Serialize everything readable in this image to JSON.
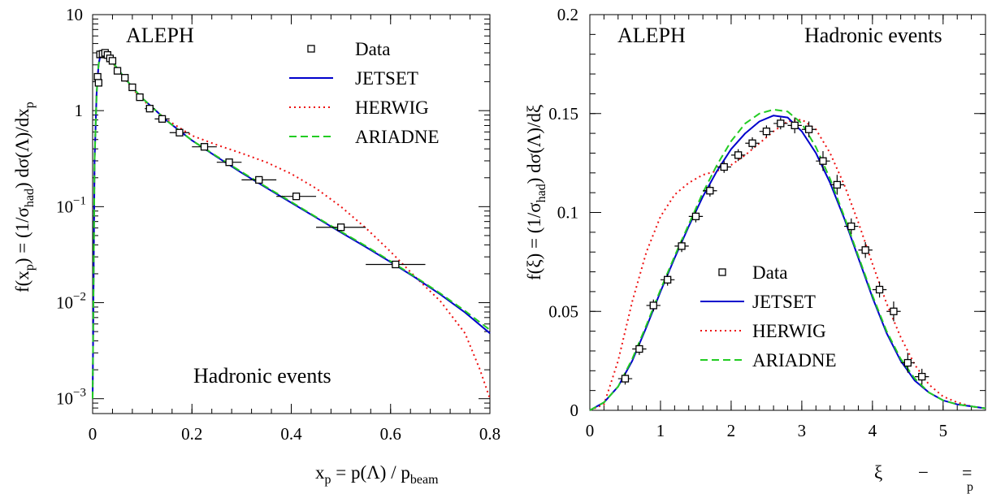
{
  "chart_data": [
    {
      "type": "scatter",
      "experiment": "ALEPH",
      "annotation": "Hadronic events",
      "xlabel": {
        "main": "x",
        "sub": "p",
        "eq": " = p(Λ) / p",
        "sub2": "beam"
      },
      "ylabel": "f(x_p) = (1/σ_had) dσ(Λ)/dx_p",
      "xlim": [
        0,
        0.8
      ],
      "ylim": [
        0.0007,
        10
      ],
      "yscale": "log",
      "xticks": [
        0,
        0.2,
        0.4,
        0.6,
        0.8
      ],
      "xtick_labels": [
        "0",
        "0.2",
        "0.4",
        "0.6",
        "0.8"
      ],
      "yticks": [
        {
          "v": 10,
          "base": "10",
          "exp": ""
        },
        {
          "v": 1,
          "base": "1",
          "exp": ""
        },
        {
          "v": 0.1,
          "base": "10",
          "exp": "−1"
        },
        {
          "v": 0.01,
          "base": "10",
          "exp": "−2"
        },
        {
          "v": 0.001,
          "base": "10",
          "exp": "−3"
        }
      ],
      "legend": [
        {
          "label": "Data",
          "style": "marker"
        },
        {
          "label": "JETSET",
          "style": "solid",
          "color": "#0000cc"
        },
        {
          "label": "HERWIG",
          "style": "dotted",
          "color": "#ee1111"
        },
        {
          "label": "ARIADNE",
          "style": "dashed",
          "color": "#22cc22"
        }
      ],
      "data": [
        {
          "x": 0.01,
          "y": 2.25,
          "xerr": 0.0025
        },
        {
          "x": 0.012,
          "y": 1.95,
          "xerr": 0.0025
        },
        {
          "x": 0.015,
          "y": 3.85,
          "xerr": 0.0025
        },
        {
          "x": 0.02,
          "y": 3.9,
          "xerr": 0.0025
        },
        {
          "x": 0.025,
          "y": 4.0,
          "xerr": 0.0025
        },
        {
          "x": 0.03,
          "y": 3.8,
          "xerr": 0.0025
        },
        {
          "x": 0.035,
          "y": 3.5,
          "xerr": 0.0025
        },
        {
          "x": 0.04,
          "y": 3.3,
          "xerr": 0.0025
        },
        {
          "x": 0.05,
          "y": 2.6,
          "xerr": 0.005
        },
        {
          "x": 0.065,
          "y": 2.2,
          "xerr": 0.0075
        },
        {
          "x": 0.08,
          "y": 1.75,
          "xerr": 0.0075
        },
        {
          "x": 0.095,
          "y": 1.38,
          "xerr": 0.0075
        },
        {
          "x": 0.115,
          "y": 1.05,
          "xerr": 0.01
        },
        {
          "x": 0.14,
          "y": 0.82,
          "xerr": 0.015
        },
        {
          "x": 0.175,
          "y": 0.59,
          "xerr": 0.02
        },
        {
          "x": 0.225,
          "y": 0.42,
          "xerr": 0.025
        },
        {
          "x": 0.275,
          "y": 0.29,
          "xerr": 0.025
        },
        {
          "x": 0.335,
          "y": 0.19,
          "xerr": 0.035
        },
        {
          "x": 0.41,
          "y": 0.128,
          "xerr": 0.04
        },
        {
          "x": 0.5,
          "y": 0.061,
          "xerr": 0.05
        },
        {
          "x": 0.61,
          "y": 0.025,
          "xerr": 0.06
        }
      ],
      "series": [
        {
          "name": "JETSET",
          "color": "#0000cc",
          "x": [
            0.0,
            0.004,
            0.008,
            0.012,
            0.016,
            0.02,
            0.025,
            0.03,
            0.04,
            0.05,
            0.06,
            0.08,
            0.1,
            0.15,
            0.2,
            0.25,
            0.3,
            0.35,
            0.4,
            0.45,
            0.5,
            0.55,
            0.6,
            0.65,
            0.7,
            0.75,
            0.8
          ],
          "y": [
            0.001,
            0.3,
            1.5,
            3.0,
            3.9,
            4.1,
            4.0,
            3.7,
            3.2,
            2.75,
            2.35,
            1.75,
            1.35,
            0.78,
            0.49,
            0.33,
            0.225,
            0.157,
            0.11,
            0.077,
            0.054,
            0.038,
            0.0265,
            0.0182,
            0.0122,
            0.0079,
            0.0048
          ]
        },
        {
          "name": "HERWIG",
          "color": "#ee1111",
          "x": [
            0.0,
            0.004,
            0.008,
            0.012,
            0.016,
            0.02,
            0.025,
            0.03,
            0.04,
            0.05,
            0.06,
            0.08,
            0.1,
            0.15,
            0.2,
            0.25,
            0.3,
            0.35,
            0.4,
            0.45,
            0.5,
            0.55,
            0.6,
            0.65,
            0.7,
            0.75,
            0.78,
            0.8
          ],
          "y": [
            0.001,
            0.3,
            1.5,
            3.0,
            3.9,
            4.1,
            4.0,
            3.7,
            3.15,
            2.7,
            2.3,
            1.7,
            1.3,
            0.8,
            0.55,
            0.44,
            0.36,
            0.29,
            0.22,
            0.155,
            0.1,
            0.06,
            0.034,
            0.0185,
            0.0104,
            0.0048,
            0.002,
            0.001
          ]
        },
        {
          "name": "ARIADNE",
          "color": "#22cc22",
          "x": [
            0.0,
            0.004,
            0.008,
            0.012,
            0.016,
            0.02,
            0.025,
            0.03,
            0.04,
            0.05,
            0.06,
            0.08,
            0.1,
            0.15,
            0.2,
            0.25,
            0.3,
            0.35,
            0.4,
            0.45,
            0.5,
            0.55,
            0.6,
            0.65,
            0.7,
            0.75,
            0.8
          ],
          "y": [
            0.001,
            0.3,
            1.5,
            3.0,
            3.9,
            4.1,
            4.0,
            3.7,
            3.2,
            2.75,
            2.35,
            1.75,
            1.35,
            0.78,
            0.49,
            0.335,
            0.23,
            0.16,
            0.112,
            0.078,
            0.055,
            0.039,
            0.027,
            0.0185,
            0.0125,
            0.0082,
            0.0052
          ]
        }
      ]
    },
    {
      "type": "scatter",
      "experiment": "ALEPH",
      "annotation": "Hadronic events",
      "xlabel": {
        "main": "ξ",
        "dash": "−",
        "bar": "="
      },
      "ylabel": "f(ξ) = (1/σ_had) dσ(Λ)/dξ",
      "xlim": [
        0,
        5.6
      ],
      "ylim": [
        0,
        0.2
      ],
      "yscale": "linear",
      "xticks": [
        0,
        1,
        2,
        3,
        4,
        5
      ],
      "xtick_labels": [
        "0",
        "1",
        "2",
        "3",
        "4",
        "5"
      ],
      "yticks": [
        {
          "v": 0,
          "label": "0"
        },
        {
          "v": 0.05,
          "label": "0.05"
        },
        {
          "v": 0.1,
          "label": "0.1"
        },
        {
          "v": 0.15,
          "label": "0.15"
        },
        {
          "v": 0.2,
          "label": "0.2"
        }
      ],
      "legend": [
        {
          "label": "Data",
          "style": "marker"
        },
        {
          "label": "JETSET",
          "style": "solid",
          "color": "#0000cc"
        },
        {
          "label": "HERWIG",
          "style": "dotted",
          "color": "#ee1111"
        },
        {
          "label": "ARIADNE",
          "style": "dashed",
          "color": "#22cc22"
        }
      ],
      "data": [
        {
          "x": 0.5,
          "y": 0.016,
          "xerr": 0.1,
          "yerr": 0.003
        },
        {
          "x": 0.7,
          "y": 0.031,
          "xerr": 0.1,
          "yerr": 0.003
        },
        {
          "x": 0.9,
          "y": 0.053,
          "xerr": 0.1,
          "yerr": 0.003
        },
        {
          "x": 1.1,
          "y": 0.066,
          "xerr": 0.1,
          "yerr": 0.003
        },
        {
          "x": 1.3,
          "y": 0.083,
          "xerr": 0.1,
          "yerr": 0.003
        },
        {
          "x": 1.5,
          "y": 0.098,
          "xerr": 0.1,
          "yerr": 0.003
        },
        {
          "x": 1.7,
          "y": 0.111,
          "xerr": 0.1,
          "yerr": 0.003
        },
        {
          "x": 1.9,
          "y": 0.123,
          "xerr": 0.1,
          "yerr": 0.003
        },
        {
          "x": 2.1,
          "y": 0.129,
          "xerr": 0.1,
          "yerr": 0.003
        },
        {
          "x": 2.3,
          "y": 0.135,
          "xerr": 0.1,
          "yerr": 0.003
        },
        {
          "x": 2.5,
          "y": 0.141,
          "xerr": 0.1,
          "yerr": 0.003
        },
        {
          "x": 2.7,
          "y": 0.145,
          "xerr": 0.1,
          "yerr": 0.003
        },
        {
          "x": 2.9,
          "y": 0.144,
          "xerr": 0.1,
          "yerr": 0.004
        },
        {
          "x": 3.1,
          "y": 0.142,
          "xerr": 0.1,
          "yerr": 0.004
        },
        {
          "x": 3.3,
          "y": 0.126,
          "xerr": 0.1,
          "yerr": 0.005
        },
        {
          "x": 3.5,
          "y": 0.114,
          "xerr": 0.1,
          "yerr": 0.005
        },
        {
          "x": 3.7,
          "y": 0.093,
          "xerr": 0.1,
          "yerr": 0.004
        },
        {
          "x": 3.9,
          "y": 0.081,
          "xerr": 0.1,
          "yerr": 0.004
        },
        {
          "x": 4.1,
          "y": 0.061,
          "xerr": 0.1,
          "yerr": 0.004
        },
        {
          "x": 4.3,
          "y": 0.05,
          "xerr": 0.1,
          "yerr": 0.005
        },
        {
          "x": 4.5,
          "y": 0.024,
          "xerr": 0.1,
          "yerr": 0.005
        },
        {
          "x": 4.7,
          "y": 0.017,
          "xerr": 0.1,
          "yerr": 0.004
        }
      ],
      "series": [
        {
          "name": "JETSET",
          "color": "#0000cc",
          "x": [
            0.0,
            0.2,
            0.4,
            0.6,
            0.8,
            1.0,
            1.2,
            1.4,
            1.6,
            1.8,
            2.0,
            2.2,
            2.4,
            2.6,
            2.8,
            3.0,
            3.2,
            3.4,
            3.6,
            3.8,
            4.0,
            4.2,
            4.4,
            4.6,
            4.8,
            5.0,
            5.2,
            5.4,
            5.6
          ],
          "y": [
            0.0,
            0.004,
            0.012,
            0.025,
            0.042,
            0.06,
            0.077,
            0.093,
            0.108,
            0.121,
            0.132,
            0.14,
            0.146,
            0.149,
            0.148,
            0.141,
            0.13,
            0.115,
            0.097,
            0.077,
            0.057,
            0.039,
            0.025,
            0.015,
            0.009,
            0.005,
            0.003,
            0.002,
            0.001
          ]
        },
        {
          "name": "HERWIG",
          "color": "#ee1111",
          "x": [
            0.0,
            0.2,
            0.4,
            0.6,
            0.8,
            1.0,
            1.2,
            1.4,
            1.6,
            1.8,
            2.0,
            2.2,
            2.4,
            2.6,
            2.8,
            3.0,
            3.2,
            3.4,
            3.6,
            3.8,
            4.0,
            4.2,
            4.4,
            4.6,
            4.8,
            5.0,
            5.2,
            5.4,
            5.6
          ],
          "y": [
            0.0,
            0.003,
            0.025,
            0.055,
            0.08,
            0.098,
            0.109,
            0.115,
            0.119,
            0.121,
            0.124,
            0.129,
            0.135,
            0.141,
            0.146,
            0.147,
            0.142,
            0.13,
            0.114,
            0.095,
            0.074,
            0.054,
            0.037,
            0.023,
            0.013,
            0.007,
            0.004,
            0.002,
            0.001
          ]
        },
        {
          "name": "ARIADNE",
          "color": "#22cc22",
          "x": [
            0.0,
            0.2,
            0.4,
            0.6,
            0.8,
            1.0,
            1.2,
            1.4,
            1.6,
            1.8,
            2.0,
            2.2,
            2.4,
            2.6,
            2.8,
            3.0,
            3.2,
            3.4,
            3.6,
            3.8,
            4.0,
            4.2,
            4.4,
            4.6,
            4.8,
            5.0,
            5.2,
            5.4,
            5.6
          ],
          "y": [
            0.0,
            0.004,
            0.012,
            0.026,
            0.043,
            0.061,
            0.078,
            0.094,
            0.11,
            0.124,
            0.136,
            0.145,
            0.15,
            0.152,
            0.151,
            0.145,
            0.133,
            0.117,
            0.098,
            0.078,
            0.058,
            0.04,
            0.026,
            0.016,
            0.009,
            0.005,
            0.003,
            0.002,
            0.001
          ]
        }
      ]
    }
  ]
}
